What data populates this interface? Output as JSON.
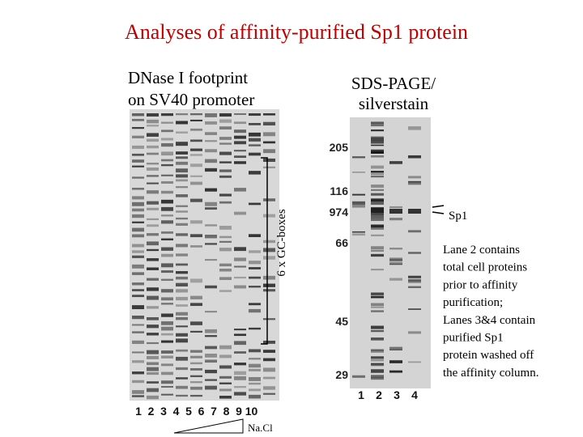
{
  "title": "Analyses of affinity-purified Sp1 protein",
  "left_panel": {
    "caption": [
      "DNase I footprint",
      "on SV40 promoter"
    ],
    "bracket_label": "6 x GC-boxes",
    "lanes": [
      "1",
      "2",
      "3",
      "4",
      "5",
      "6",
      "7",
      "8",
      "9",
      "10"
    ],
    "gradient_label": "Na.Cl"
  },
  "right_panel": {
    "caption": [
      "SDS-PAGE/",
      "silverstain"
    ],
    "markers": [
      "205",
      "116",
      "974",
      "66",
      "45",
      "29"
    ],
    "lanes": [
      "1",
      "2",
      "3",
      "4"
    ],
    "band_label": "Sp1"
  },
  "note": [
    "Lane 2 contains",
    "total cell proteins",
    "prior to affinity",
    "purification;",
    "Lanes 3&4 contain",
    "purified Sp1",
    "protein washed off",
    "the affinity column."
  ]
}
